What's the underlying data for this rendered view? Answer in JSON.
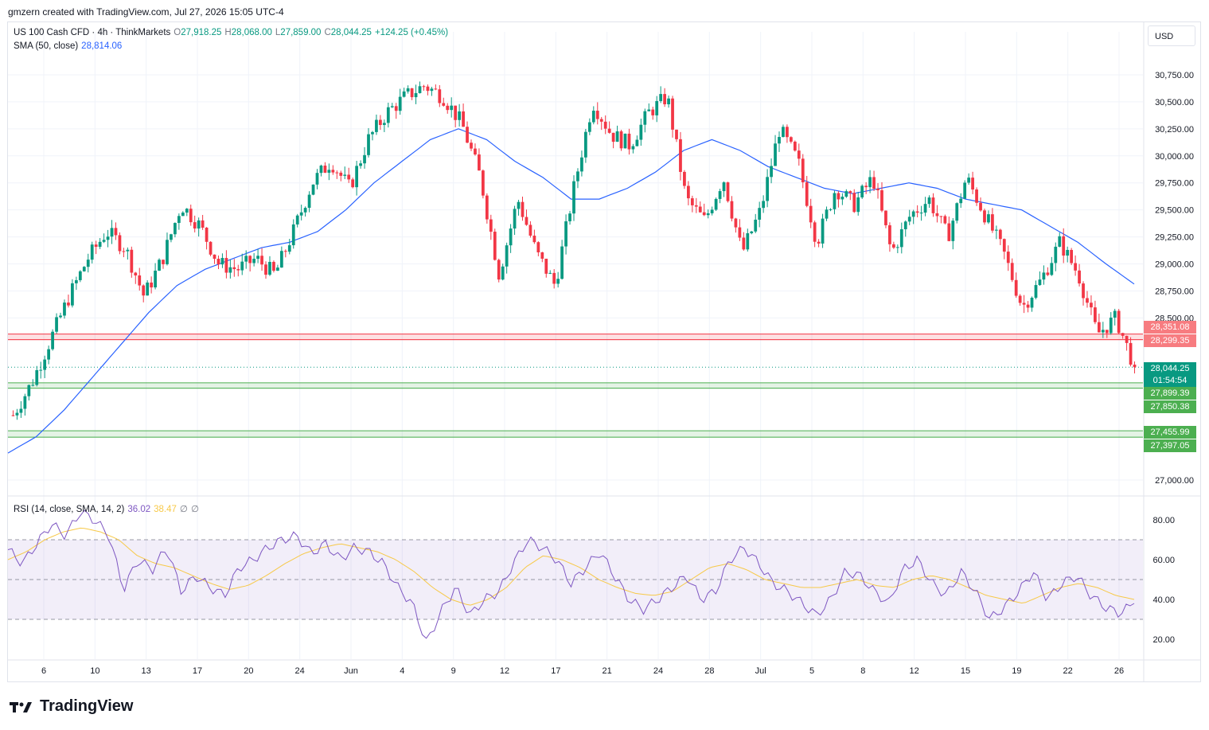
{
  "watermark": "gmzern created with TradingView.com, Jul 27, 2026 15:05 UTC-4",
  "legend": {
    "symbol": "US 100 Cash CFD · 4h · ThinkMarkets",
    "open_label": "O",
    "open": "27,918.25",
    "high_label": "H",
    "high": "28,068.00",
    "low_label": "L",
    "low": "27,859.00",
    "close_label": "C",
    "close": "28,044.25",
    "change": "+124.25 (+0.45%)",
    "sma_label": "SMA (50, close)",
    "sma_value": "28,814.06",
    "rsi_label": "RSI (14, close, SMA, 14, 2)",
    "rsi_value": "36.02",
    "rsi_ma_value": "38.47",
    "rsi_extra1": "∅",
    "rsi_extra2": "∅"
  },
  "currency": "USD",
  "brand": "TradingView",
  "colors": {
    "up": "#089981",
    "down": "#f23645",
    "sma": "#2962ff",
    "rsi": "#7e57c2",
    "rsi_ma": "#f7c948",
    "resistance": "#f23645",
    "support": "#4caf50",
    "current": "#089981"
  },
  "chart_data": [
    {
      "type": "candlestick",
      "title": "US 100 Cash CFD · 4h · ThinkMarkets",
      "ylim": [
        26875,
        31000
      ],
      "y_ticks": [
        "30,750.00",
        "30,500.00",
        "30,250.00",
        "30,000.00",
        "29,750.00",
        "29,500.00",
        "29,250.00",
        "29,000.00",
        "28,750.00",
        "28,500.00",
        "27,000.00"
      ],
      "x_ticks": [
        "6",
        "10",
        "13",
        "17",
        "20",
        "24",
        "Jun",
        "4",
        "9",
        "12",
        "17",
        "21",
        "24",
        "28",
        "Jul",
        "5",
        "8",
        "12",
        "15",
        "19",
        "22",
        "26"
      ],
      "close_path": [
        27600,
        27900,
        28300,
        28700,
        29050,
        29300,
        29150,
        28700,
        29050,
        29550,
        29350,
        29000,
        28950,
        29050,
        28900,
        29300,
        29750,
        29950,
        29700,
        30150,
        30400,
        30550,
        30650,
        30550,
        30300,
        29800,
        28900,
        29600,
        29100,
        28800,
        29700,
        30500,
        30200,
        30100,
        30400,
        30550,
        29600,
        29400,
        29800,
        29100,
        29500,
        30250,
        29950,
        29200,
        29700,
        29550,
        29800,
        29100,
        29450,
        29600,
        29250,
        29800,
        29450,
        29100,
        28600,
        28850,
        29200,
        28900,
        28350,
        28500,
        28044
      ],
      "sma_path": [
        27250,
        27400,
        27650,
        27950,
        28250,
        28550,
        28800,
        28950,
        29050,
        29150,
        29200,
        29300,
        29500,
        29750,
        29950,
        30150,
        30250,
        30150,
        29950,
        29800,
        29600,
        29600,
        29700,
        29850,
        30050,
        30150,
        30050,
        29900,
        29800,
        29700,
        29650,
        29700,
        29750,
        29700,
        29600,
        29550,
        29500,
        29350,
        29200,
        29000,
        28814
      ],
      "series": [
        {
          "name": "SMA (50, close)",
          "last": 28814.06
        }
      ],
      "horizontal_levels": [
        {
          "value": 28351.08,
          "label": "28,351.08",
          "kind": "resistance"
        },
        {
          "value": 28299.35,
          "label": "28,299.35",
          "kind": "resistance"
        },
        {
          "value": 28044.25,
          "label": "28,044.25",
          "kind": "current"
        },
        {
          "value": 27899.39,
          "label": "27,899.39",
          "kind": "support"
        },
        {
          "value": 27850.38,
          "label": "27,850.38",
          "kind": "support"
        },
        {
          "value": 27455.99,
          "label": "27,455.99",
          "kind": "support"
        },
        {
          "value": 27397.05,
          "label": "27,397.05",
          "kind": "support"
        }
      ],
      "countdown": "01:54:54"
    },
    {
      "type": "line",
      "title": "RSI (14, close, SMA, 14, 2)",
      "ylim": [
        10,
        90
      ],
      "y_ticks": [
        "80.00",
        "60.00",
        "40.00",
        "20.00"
      ],
      "bands": {
        "upper": 70,
        "middle": 50,
        "lower": 30
      },
      "series": [
        {
          "name": "RSI",
          "values": [
            65,
            58,
            68,
            78,
            72,
            84,
            80,
            72,
            45,
            60,
            55,
            66,
            44,
            52,
            46,
            42,
            56,
            60,
            66,
            70,
            72,
            63,
            68,
            60,
            66,
            64,
            58,
            46,
            38,
            18,
            34,
            46,
            32,
            40,
            44,
            58,
            70,
            66,
            60,
            48,
            56,
            64,
            52,
            40,
            35,
            40,
            46,
            52,
            40,
            44,
            60,
            66,
            58,
            48,
            44,
            38,
            32,
            40,
            54,
            52,
            44,
            38,
            55,
            60,
            48,
            42,
            54,
            44,
            30,
            36,
            44,
            54,
            40,
            48,
            52,
            42,
            36,
            33,
            38
          ],
          "last": 36.02
        },
        {
          "name": "RSI MA",
          "values": [
            60,
            64,
            70,
            74,
            76,
            74,
            70,
            62,
            58,
            56,
            52,
            48,
            45,
            47,
            52,
            58,
            63,
            66,
            68,
            66,
            64,
            60,
            54,
            46,
            40,
            37,
            40,
            46,
            56,
            62,
            60,
            56,
            50,
            46,
            43,
            42,
            44,
            50,
            56,
            58,
            55,
            50,
            48,
            46,
            46,
            48,
            50,
            47,
            46,
            50,
            52,
            50,
            46,
            42,
            40,
            38,
            42,
            46,
            48,
            46,
            42,
            40
          ],
          "last": 38.47
        }
      ]
    }
  ]
}
